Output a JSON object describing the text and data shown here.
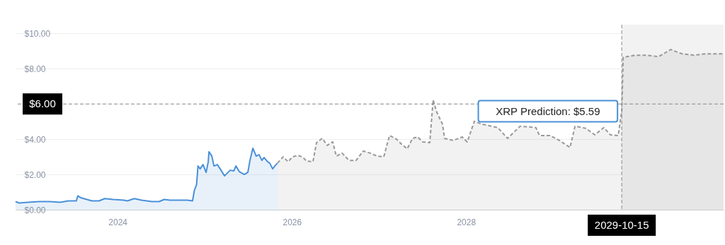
{
  "chart_data": {
    "type": "area",
    "grid": "y",
    "xlim": [
      "2022-10-30",
      "2030-12-16"
    ],
    "xticks": [
      "2024",
      "2026",
      "2028"
    ],
    "ylim": [
      0,
      10.5
    ],
    "yticks": [
      {
        "value": 0,
        "label": "$0.00"
      },
      {
        "value": 2,
        "label": "$2.00"
      },
      {
        "value": 4,
        "label": "$4.00"
      },
      {
        "value": 8,
        "label": "$8.00"
      },
      {
        "value": 10,
        "label": "$10.00"
      }
    ],
    "series": [
      {
        "color": "#4a90d9",
        "x": [
          "2022-10-30",
          "2022-11-14",
          "2022-12-22",
          "2023-02-05",
          "2023-03-21",
          "2023-05-05",
          "2023-06-09",
          "2023-07-12",
          "2023-07-18",
          "2023-08-01",
          "2023-09-15",
          "2023-10-15",
          "2023-11-08",
          "2023-12-13",
          "2024-01-27",
          "2024-02-11",
          "2024-03-11",
          "2024-04-10",
          "2024-05-24",
          "2024-06-23",
          "2024-07-14",
          "2024-08-07",
          "2024-09-20",
          "2024-10-20",
          "2024-11-10",
          "2024-11-18",
          "2024-11-27",
          "2024-12-03",
          "2024-12-12",
          "2024-12-24",
          "2025-01-06",
          "2025-01-15",
          "2025-01-18",
          "2025-01-30",
          "2025-02-08",
          "2025-02-22",
          "2025-03-06",
          "2025-03-24",
          "2025-04-02",
          "2025-04-17",
          "2025-05-02",
          "2025-05-11",
          "2025-05-25",
          "2025-06-15",
          "2025-06-30",
          "2025-07-09",
          "2025-07-21",
          "2025-08-04",
          "2025-08-16",
          "2025-08-28",
          "2025-09-06",
          "2025-09-21",
          "2025-09-30",
          "2025-10-12",
          "2025-10-21",
          "2025-11-01"
        ],
        "values": [
          0.46,
          0.38,
          0.42,
          0.46,
          0.46,
          0.42,
          0.5,
          0.5,
          0.79,
          0.67,
          0.5,
          0.5,
          0.63,
          0.58,
          0.54,
          0.5,
          0.63,
          0.54,
          0.46,
          0.46,
          0.58,
          0.54,
          0.54,
          0.54,
          0.5,
          1.11,
          1.43,
          2.48,
          2.32,
          2.56,
          2.12,
          2.72,
          3.29,
          3.04,
          2.48,
          2.56,
          2.32,
          1.92,
          2.04,
          2.24,
          2.2,
          2.48,
          2.16,
          2.0,
          2.12,
          2.8,
          3.49,
          3.04,
          3.12,
          2.8,
          2.96,
          2.72,
          2.64,
          2.32,
          2.48,
          2.64
        ]
      },
      {
        "color": "#999999",
        "line_style": "dashed",
        "x": [
          "2025-11-01",
          "2025-11-25",
          "2025-12-16",
          "2026-01-03",
          "2026-01-24",
          "2026-02-14",
          "2026-03-03",
          "2026-03-30",
          "2026-04-14",
          "2026-05-08",
          "2026-05-29",
          "2026-06-21",
          "2026-07-06",
          "2026-07-30",
          "2026-08-28",
          "2026-09-27",
          "2026-10-27",
          "2026-11-25",
          "2026-12-25",
          "2027-01-21",
          "2027-02-14",
          "2027-03-15",
          "2027-04-05",
          "2027-04-29",
          "2027-05-22",
          "2027-06-12",
          "2027-07-03",
          "2027-08-02",
          "2027-08-16",
          "2027-08-31",
          "2027-09-24",
          "2027-10-03",
          "2027-11-08",
          "2027-12-16",
          "2028-01-06",
          "2028-02-05",
          "2028-03-06",
          "2028-05-13",
          "2028-06-23",
          "2028-08-15",
          "2028-10-20",
          "2028-11-04",
          "2028-12-18",
          "2029-01-27",
          "2029-03-12",
          "2029-04-02",
          "2029-05-17",
          "2029-06-24",
          "2029-08-01",
          "2029-08-28",
          "2029-09-30",
          "2029-10-15",
          "2029-10-21",
          "2029-12-10",
          "2030-01-27",
          "2030-03-18",
          "2030-05-08",
          "2030-06-24",
          "2030-08-14",
          "2030-10-03",
          "2030-12-16"
        ],
        "values": [
          2.64,
          3.0,
          2.72,
          3.0,
          3.08,
          3.0,
          2.76,
          2.72,
          3.81,
          4.05,
          3.65,
          3.85,
          3.04,
          3.21,
          2.8,
          2.8,
          3.33,
          3.21,
          3.04,
          3.0,
          4.21,
          4.01,
          3.73,
          3.45,
          4.05,
          4.13,
          3.85,
          3.81,
          6.23,
          5.54,
          4.86,
          4.05,
          3.93,
          4.13,
          3.85,
          5.02,
          4.86,
          4.66,
          4.05,
          4.74,
          4.66,
          4.21,
          4.21,
          3.93,
          3.53,
          4.74,
          4.62,
          4.25,
          4.66,
          4.25,
          4.21,
          5.59,
          8.65,
          8.77,
          8.77,
          8.69,
          9.09,
          8.85,
          8.77,
          8.85,
          8.85
        ]
      }
    ],
    "ref_lines": [
      {
        "axis": "y",
        "value": 6,
        "label": "$6.00",
        "color": "#888888",
        "line_style": "dashed"
      },
      {
        "axis": "x",
        "value": "2029-10-15",
        "label": "2029-10-15",
        "color": "#888888",
        "line_style": "dashed"
      }
    ],
    "bands": [
      {
        "axis": "x",
        "from": "2029-10-15",
        "to": "2030-12-16",
        "color": "#f2f2f2"
      }
    ],
    "annotations": [
      {
        "text": "XRP Prediction: $5.59",
        "x": "2029-10-15",
        "y": 5.59
      }
    ]
  }
}
